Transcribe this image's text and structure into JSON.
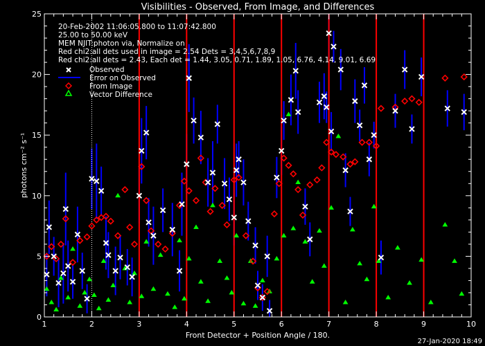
{
  "title": "Visibilities - Observed, From Image, and Differences",
  "footer_date": "27-Jan-2020 18:49",
  "info_lines": [
    "20-Feb-2002 11:06:05.800 to 11:07:42.800",
    "25.00 to 50.00 keV",
    "MEM NJIT:photon via,   Normalize on",
    "Red chi2:all dets used in image = 2.54   Dets = 3,4,5,6,7,8,9",
    "Red chi2:all dets = 2.43,  Each det = 1.44, 3.05, 0.71, 1.89, 1.05, 6.76, 4.14, 9.01, 6.69"
  ],
  "legend": [
    {
      "label": "Observed",
      "marker": "x",
      "color": "#ffffff"
    },
    {
      "label": "Error on Observed",
      "marker": "line",
      "color": "#0000ff"
    },
    {
      "label": "From Image",
      "marker": "diamond",
      "color": "#ff0000"
    },
    {
      "label": "Vector Difference",
      "marker": "triangle",
      "color": "#00ff00"
    }
  ],
  "colors": {
    "background": "#000000",
    "axes": "#ffffff",
    "observed": "#ffffff",
    "error": "#0000ff",
    "image": "#ff0000",
    "difference": "#00ff00",
    "detector_line": "#ff0000",
    "dotted_line": "#ffffff"
  },
  "chart_data": {
    "type": "scatter",
    "title": "Visibilities - Observed, From Image, and Differences",
    "xlabel": "Front Detector + Position Angle / 180.",
    "ylabel": "photons cm⁻² s⁻¹",
    "xlim": [
      1,
      10
    ],
    "ylim": [
      0,
      25
    ],
    "x_ticks": [
      1,
      2,
      3,
      4,
      5,
      6,
      7,
      8,
      9,
      10
    ],
    "y_ticks": [
      0,
      5,
      10,
      15,
      20,
      25
    ],
    "vertical_lines": [
      3,
      4,
      5,
      6,
      7,
      8,
      9
    ],
    "dotted_vertical_lines": [
      2
    ],
    "legend_position": "top-left",
    "grid": false,
    "series": [
      {
        "name": "Observed",
        "marker": "x",
        "points": [
          [
            1.05,
            3.5
          ],
          [
            1.1,
            7.4
          ],
          [
            1.2,
            5.0
          ],
          [
            1.3,
            2.8
          ],
          [
            1.4,
            3.6
          ],
          [
            1.45,
            8.9
          ],
          [
            1.5,
            4.2
          ],
          [
            1.6,
            2.9
          ],
          [
            1.7,
            6.8
          ],
          [
            1.8,
            3.8
          ],
          [
            1.9,
            1.5
          ],
          [
            2.0,
            11.4
          ],
          [
            2.1,
            11.2
          ],
          [
            2.2,
            10.4
          ],
          [
            2.3,
            6.1
          ],
          [
            2.35,
            5.1
          ],
          [
            2.5,
            3.8
          ],
          [
            2.6,
            4.9
          ],
          [
            2.75,
            4.1
          ],
          [
            2.85,
            3.3
          ],
          [
            3.0,
            10.0
          ],
          [
            3.05,
            13.7
          ],
          [
            3.15,
            15.2
          ],
          [
            3.2,
            7.8
          ],
          [
            3.3,
            6.7
          ],
          [
            3.5,
            8.8
          ],
          [
            3.7,
            7.2
          ],
          [
            3.85,
            3.8
          ],
          [
            3.9,
            9.3
          ],
          [
            4.0,
            12.6
          ],
          [
            4.05,
            19.7
          ],
          [
            4.15,
            16.2
          ],
          [
            4.3,
            14.8
          ],
          [
            4.45,
            11.1
          ],
          [
            4.55,
            11.9
          ],
          [
            4.65,
            15.9
          ],
          [
            4.8,
            11.0
          ],
          [
            4.9,
            9.7
          ],
          [
            5.0,
            8.2
          ],
          [
            5.05,
            12.1
          ],
          [
            5.1,
            13.0
          ],
          [
            5.2,
            11.1
          ],
          [
            5.3,
            7.9
          ],
          [
            5.45,
            5.9
          ],
          [
            5.5,
            2.6
          ],
          [
            5.6,
            1.6
          ],
          [
            5.7,
            5.0
          ],
          [
            5.75,
            0.5
          ],
          [
            5.9,
            11.5
          ],
          [
            6.0,
            13.7
          ],
          [
            6.05,
            16.2
          ],
          [
            6.2,
            17.9
          ],
          [
            6.3,
            20.3
          ],
          [
            6.35,
            16.9
          ],
          [
            6.5,
            9.1
          ],
          [
            6.6,
            6.4
          ],
          [
            6.8,
            17.7
          ],
          [
            6.9,
            18.2
          ],
          [
            6.95,
            17.3
          ],
          [
            7.0,
            23.4
          ],
          [
            7.05,
            15.3
          ],
          [
            7.1,
            22.3
          ],
          [
            7.25,
            20.4
          ],
          [
            7.35,
            12.1
          ],
          [
            7.45,
            8.7
          ],
          [
            7.55,
            17.8
          ],
          [
            7.65,
            15.8
          ],
          [
            7.75,
            19.1
          ],
          [
            7.85,
            13.0
          ],
          [
            7.95,
            15.0
          ],
          [
            8.1,
            4.9
          ],
          [
            8.4,
            17.0
          ],
          [
            8.6,
            20.4
          ],
          [
            8.75,
            15.5
          ],
          [
            8.95,
            19.8
          ],
          [
            9.5,
            17.2
          ],
          [
            9.85,
            16.9
          ]
        ]
      },
      {
        "name": "Error on Observed",
        "marker": "errorbar",
        "errors": [
          1.8,
          2.2,
          1.6,
          2.0,
          2.5,
          3.0,
          2.1,
          1.4,
          2.3,
          1.5,
          1.2,
          2.5,
          3.1,
          2.0,
          2.2,
          1.9,
          2.0,
          1.8,
          1.5,
          1.6,
          2.3,
          2.7,
          2.2,
          2.0,
          2.4,
          1.8,
          2.2,
          1.7,
          2.6,
          2.5,
          2.8,
          1.9,
          2.2,
          2.0,
          2.6,
          1.6,
          2.1,
          1.8,
          2.3,
          2.2,
          1.5,
          1.9,
          1.6,
          1.5,
          1.2,
          1.1,
          1.7,
          0.9,
          1.7,
          2.0,
          1.6,
          2.1,
          2.3,
          1.8,
          1.5,
          1.4,
          1.7,
          1.9,
          1.3,
          2.0,
          1.6,
          1.3,
          1.7,
          1.4,
          1.2,
          1.8,
          1.3,
          1.5,
          1.4,
          1.1,
          1.4,
          1.4,
          1.6,
          1.2,
          1.6,
          1.5,
          1.5
        ]
      },
      {
        "name": "From Image",
        "marker": "diamond",
        "points": [
          [
            1.05,
            5.0
          ],
          [
            1.15,
            5.8
          ],
          [
            1.25,
            4.8
          ],
          [
            1.35,
            6.0
          ],
          [
            1.45,
            8.1
          ],
          [
            1.6,
            4.5
          ],
          [
            1.75,
            6.3
          ],
          [
            1.9,
            6.6
          ],
          [
            2.0,
            7.5
          ],
          [
            2.1,
            8.0
          ],
          [
            2.2,
            8.2
          ],
          [
            2.3,
            8.3
          ],
          [
            2.4,
            7.9
          ],
          [
            2.55,
            6.7
          ],
          [
            2.7,
            10.5
          ],
          [
            2.8,
            7.4
          ],
          [
            2.9,
            6.0
          ],
          [
            3.05,
            12.4
          ],
          [
            3.15,
            9.6
          ],
          [
            3.25,
            7.1
          ],
          [
            3.4,
            6.0
          ],
          [
            3.55,
            5.6
          ],
          [
            3.7,
            6.9
          ],
          [
            3.85,
            9.2
          ],
          [
            3.95,
            11.2
          ],
          [
            4.05,
            10.4
          ],
          [
            4.2,
            9.6
          ],
          [
            4.3,
            13.1
          ],
          [
            4.4,
            11.1
          ],
          [
            4.5,
            8.7
          ],
          [
            4.6,
            10.6
          ],
          [
            4.75,
            9.2
          ],
          [
            4.85,
            7.6
          ],
          [
            5.0,
            11.3
          ],
          [
            5.1,
            11.5
          ],
          [
            5.25,
            6.7
          ],
          [
            5.4,
            4.6
          ],
          [
            5.5,
            2.4
          ],
          [
            5.6,
            1.6
          ],
          [
            5.7,
            2.1
          ],
          [
            5.85,
            8.5
          ],
          [
            5.95,
            11.0
          ],
          [
            6.05,
            13.1
          ],
          [
            6.15,
            12.5
          ],
          [
            6.25,
            11.8
          ],
          [
            6.35,
            10.5
          ],
          [
            6.45,
            8.4
          ],
          [
            6.6,
            10.9
          ],
          [
            6.75,
            11.3
          ],
          [
            6.85,
            12.3
          ],
          [
            6.95,
            14.4
          ],
          [
            7.05,
            13.6
          ],
          [
            7.15,
            13.4
          ],
          [
            7.3,
            13.2
          ],
          [
            7.45,
            12.6
          ],
          [
            7.55,
            12.8
          ],
          [
            7.7,
            14.4
          ],
          [
            7.85,
            14.4
          ],
          [
            8.0,
            14.1
          ],
          [
            8.1,
            17.2
          ],
          [
            8.4,
            17.3
          ],
          [
            8.6,
            17.8
          ],
          [
            8.75,
            18.0
          ],
          [
            8.9,
            17.7
          ],
          [
            9.45,
            19.7
          ],
          [
            9.85,
            19.8
          ]
        ]
      },
      {
        "name": "Vector Difference",
        "marker": "triangle",
        "points": [
          [
            1.05,
            2.3
          ],
          [
            1.15,
            1.2
          ],
          [
            1.25,
            0.6
          ],
          [
            1.35,
            3.2
          ],
          [
            1.5,
            1.6
          ],
          [
            1.6,
            5.6
          ],
          [
            1.75,
            0.9
          ],
          [
            1.85,
            2.0
          ],
          [
            1.95,
            3.1
          ],
          [
            2.05,
            1.8
          ],
          [
            2.15,
            0.7
          ],
          [
            2.25,
            4.6
          ],
          [
            2.35,
            1.4
          ],
          [
            2.45,
            2.6
          ],
          [
            2.55,
            10.0
          ],
          [
            2.7,
            4.0
          ],
          [
            2.8,
            1.2
          ],
          [
            2.9,
            3.6
          ],
          [
            3.05,
            1.7
          ],
          [
            3.15,
            6.2
          ],
          [
            3.3,
            2.3
          ],
          [
            3.45,
            5.1
          ],
          [
            3.6,
            1.9
          ],
          [
            3.75,
            0.8
          ],
          [
            3.85,
            6.3
          ],
          [
            3.95,
            1.5
          ],
          [
            4.05,
            4.8
          ],
          [
            4.2,
            7.4
          ],
          [
            4.3,
            2.9
          ],
          [
            4.45,
            1.3
          ],
          [
            4.55,
            9.2
          ],
          [
            4.7,
            4.6
          ],
          [
            4.85,
            3.2
          ],
          [
            4.95,
            2.0
          ],
          [
            5.05,
            6.7
          ],
          [
            5.2,
            1.1
          ],
          [
            5.35,
            4.6
          ],
          [
            5.45,
            0.9
          ],
          [
            5.6,
            3.0
          ],
          [
            5.75,
            2.1
          ],
          [
            5.9,
            4.8
          ],
          [
            6.05,
            6.7
          ],
          [
            6.15,
            16.7
          ],
          [
            6.25,
            7.3
          ],
          [
            6.35,
            11.1
          ],
          [
            6.5,
            6.2
          ],
          [
            6.65,
            2.9
          ],
          [
            6.8,
            7.1
          ],
          [
            6.9,
            4.2
          ],
          [
            7.05,
            9.0
          ],
          [
            7.2,
            14.9
          ],
          [
            7.35,
            1.2
          ],
          [
            7.5,
            7.2
          ],
          [
            7.65,
            4.4
          ],
          [
            7.8,
            3.1
          ],
          [
            7.95,
            9.1
          ],
          [
            8.05,
            4.6
          ],
          [
            8.25,
            1.6
          ],
          [
            8.45,
            5.7
          ],
          [
            8.7,
            2.8
          ],
          [
            8.95,
            4.7
          ],
          [
            9.15,
            1.2
          ],
          [
            9.45,
            7.6
          ],
          [
            9.65,
            4.6
          ],
          [
            9.8,
            1.9
          ]
        ]
      }
    ]
  }
}
